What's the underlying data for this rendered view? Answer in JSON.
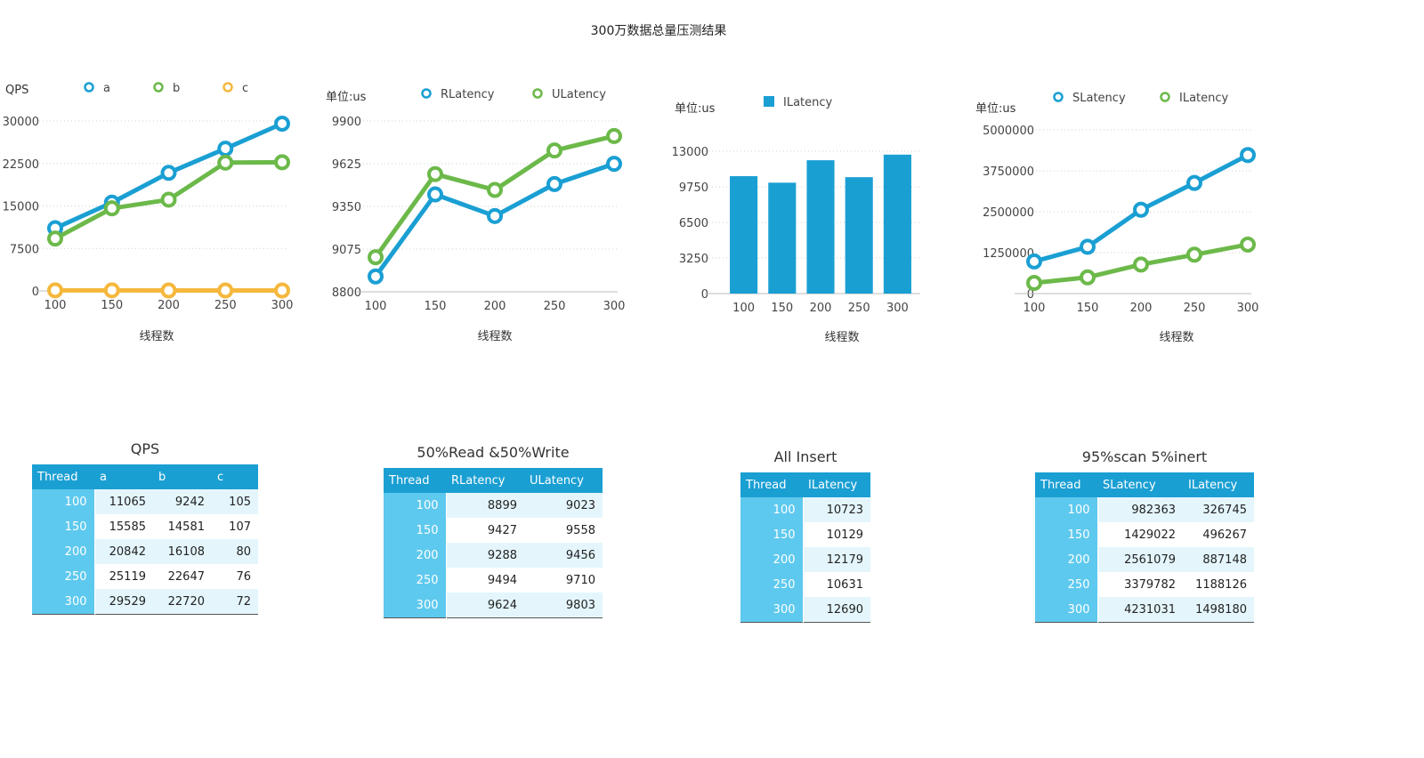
{
  "title": "300万数据总量压测结果",
  "colors": {
    "blue": "#1a9fd3",
    "green": "#6cb94a",
    "orange": "#f5b83d",
    "header": "#1a9fd3",
    "key": "#5ec9ee",
    "stripe": "#e4f6fc"
  },
  "chart_data": [
    {
      "type": "line",
      "title": "",
      "ylabel": "QPS",
      "xlabel": "线程数",
      "categories": [
        "100",
        "150",
        "200",
        "250",
        "300"
      ],
      "yticks": [
        0,
        7500,
        15000,
        22500,
        30000
      ],
      "ylim": [
        0,
        30000
      ],
      "grid": true,
      "legend": "top",
      "series": [
        {
          "name": "a",
          "values": [
            11065,
            15585,
            20842,
            25119,
            29529
          ],
          "color": "#1a9fd3"
        },
        {
          "name": "b",
          "values": [
            9242,
            14581,
            16108,
            22647,
            22720
          ],
          "color": "#6cb94a"
        },
        {
          "name": "c",
          "values": [
            105,
            107,
            80,
            76,
            72
          ],
          "color": "#f5b83d"
        }
      ]
    },
    {
      "type": "line",
      "title": "",
      "ylabel": "单位:us",
      "xlabel": "线程数",
      "categories": [
        "100",
        "150",
        "200",
        "250",
        "300"
      ],
      "yticks": [
        8800,
        9075,
        9350,
        9625,
        9900
      ],
      "ylim": [
        8800,
        9900
      ],
      "grid": true,
      "legend": "top",
      "series": [
        {
          "name": "RLatency",
          "values": [
            8899,
            9427,
            9288,
            9494,
            9624
          ],
          "color": "#1a9fd3"
        },
        {
          "name": "ULatency",
          "values": [
            9023,
            9558,
            9456,
            9710,
            9803
          ],
          "color": "#6cb94a"
        }
      ]
    },
    {
      "type": "bar",
      "title": "",
      "ylabel": "单位:us",
      "xlabel": "线程数",
      "categories": [
        "100",
        "150",
        "200",
        "250",
        "300"
      ],
      "yticks": [
        0,
        3250,
        6500,
        9750,
        13000
      ],
      "ylim": [
        0,
        13000
      ],
      "grid": true,
      "legend": "top",
      "series": [
        {
          "name": "ILatency",
          "values": [
            10723,
            10129,
            12179,
            10631,
            12690
          ],
          "color": "#1a9fd3"
        }
      ]
    },
    {
      "type": "line",
      "title": "",
      "ylabel": "单位:us",
      "xlabel": "线程数",
      "categories": [
        "100",
        "150",
        "200",
        "250",
        "300"
      ],
      "yticks": [
        0,
        1250000,
        2500000,
        3750000,
        5000000
      ],
      "ylim": [
        0,
        5000000
      ],
      "grid": true,
      "legend": "top",
      "series": [
        {
          "name": "SLatency",
          "values": [
            982363,
            1429022,
            2561079,
            3379782,
            4231031
          ],
          "color": "#1a9fd3"
        },
        {
          "name": "ILatency",
          "values": [
            326745,
            496267,
            887148,
            1188126,
            1498180
          ],
          "color": "#6cb94a"
        }
      ]
    }
  ],
  "tables": [
    {
      "title": "QPS",
      "headers": [
        "Thread",
        "a",
        "b",
        "c"
      ],
      "rows": [
        [
          "100",
          "11065",
          "9242",
          "105"
        ],
        [
          "150",
          "15585",
          "14581",
          "107"
        ],
        [
          "200",
          "20842",
          "16108",
          "80"
        ],
        [
          "250",
          "25119",
          "22647",
          "76"
        ],
        [
          "300",
          "29529",
          "22720",
          "72"
        ]
      ]
    },
    {
      "title": "50%Read &50%Write",
      "headers": [
        "Thread",
        "RLatency",
        "ULatency"
      ],
      "rows": [
        [
          "100",
          "8899",
          "9023"
        ],
        [
          "150",
          "9427",
          "9558"
        ],
        [
          "200",
          "9288",
          "9456"
        ],
        [
          "250",
          "9494",
          "9710"
        ],
        [
          "300",
          "9624",
          "9803"
        ]
      ]
    },
    {
      "title": "All Insert",
      "headers": [
        "Thread",
        "ILatency"
      ],
      "rows": [
        [
          "100",
          "10723"
        ],
        [
          "150",
          "10129"
        ],
        [
          "200",
          "12179"
        ],
        [
          "250",
          "10631"
        ],
        [
          "300",
          "12690"
        ]
      ]
    },
    {
      "title": "95%scan 5%inert",
      "headers": [
        "Thread",
        "SLatency",
        "ILatency"
      ],
      "rows": [
        [
          "100",
          "982363",
          "326745"
        ],
        [
          "150",
          "1429022",
          "496267"
        ],
        [
          "200",
          "2561079",
          "887148"
        ],
        [
          "250",
          "3379782",
          "1188126"
        ],
        [
          "300",
          "4231031",
          "1498180"
        ]
      ]
    }
  ]
}
